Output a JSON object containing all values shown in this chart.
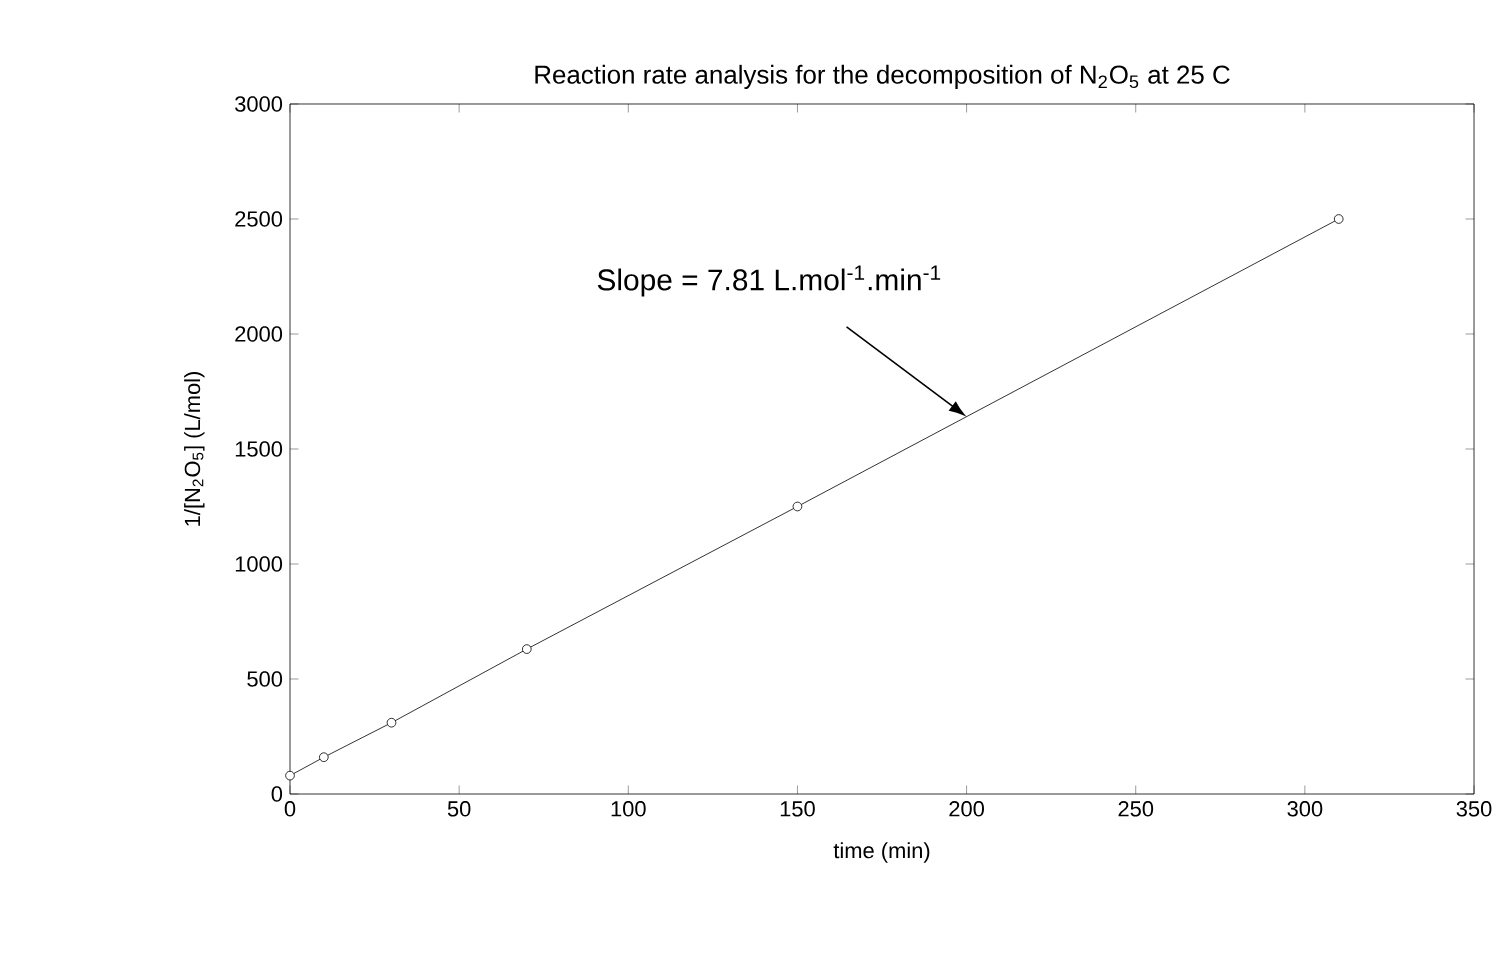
{
  "chart_data": {
    "type": "line",
    "title": "Reaction rate analysis for the decomposition of N$_{2}$O$_{5}$ at 25 C",
    "xlabel": "time (min)",
    "ylabel": "1/[N$_{2}$O$_{5}$]  (L/mol)",
    "x": [
      0,
      10,
      30,
      70,
      150,
      310
    ],
    "series": [
      {
        "color": "#000000",
        "values": [
          80,
          160,
          310,
          630,
          1250,
          2500
        ]
      }
    ],
    "marker": "circle",
    "line_style": "solid",
    "xlim": [
      0,
      350
    ],
    "xticks": [
      0,
      50,
      100,
      150,
      200,
      250,
      300,
      350
    ],
    "ylim": [
      0,
      3000
    ],
    "yticks": [
      0,
      500,
      1000,
      1500,
      2000,
      2500,
      3000
    ],
    "grid": false,
    "annotations": [
      {
        "text": "Slope = 7.81 L.mol$^{-1}$.min$^{-1}$",
        "x": 200,
        "y": 1640
      }
    ]
  }
}
